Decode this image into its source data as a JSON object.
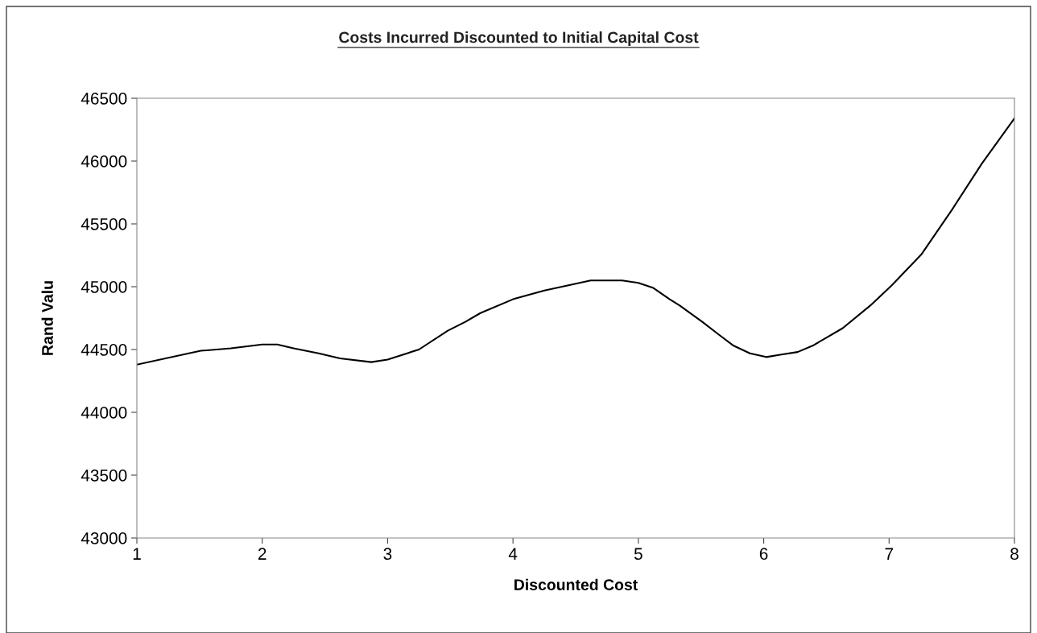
{
  "chart_data": {
    "type": "line",
    "title": "Costs Incurred Discounted to Initial Capital Cost",
    "xlabel": "Discounted Cost",
    "ylabel": "Rand Valu",
    "series": [
      {
        "color": "#000000",
        "x": [
          1.0,
          1.51,
          1.75,
          2.0,
          2.12,
          2.25,
          2.45,
          2.62,
          2.87,
          3.0,
          3.25,
          3.48,
          3.62,
          3.74,
          4.0,
          4.25,
          4.62,
          4.87,
          5.0,
          5.12,
          5.25,
          5.33,
          5.51,
          5.64,
          5.76,
          5.89,
          6.02,
          6.14,
          6.27,
          6.39,
          6.63,
          6.85,
          7.02,
          7.26,
          7.5,
          7.74,
          8.0
        ],
        "values": [
          44380,
          44490,
          44510,
          44540,
          44540,
          44510,
          44470,
          44430,
          44400,
          44420,
          44500,
          44650,
          44720,
          44790,
          44900,
          44970,
          45050,
          45050,
          45030,
          44990,
          44900,
          44850,
          44720,
          44620,
          44530,
          44470,
          44440,
          44460,
          44480,
          44530,
          44670,
          44850,
          45010,
          45260,
          45610,
          45980,
          46340
        ]
      }
    ],
    "xlim": [
      1,
      8
    ],
    "xticks": [
      1,
      2,
      3,
      4,
      5,
      6,
      7,
      8
    ],
    "ylim": [
      43000,
      46500
    ],
    "yticks": [
      43000,
      43500,
      44000,
      44500,
      45000,
      45500,
      46000,
      46500
    ],
    "grid": false,
    "legend": false,
    "marker": "none",
    "line_style": "solid"
  }
}
